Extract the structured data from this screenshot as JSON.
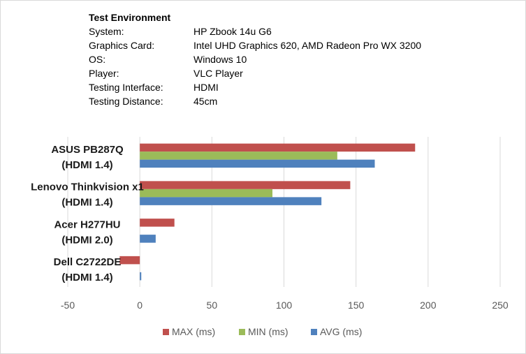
{
  "environment": {
    "title": "Test Environment",
    "rows": [
      {
        "label": "System:",
        "value": "HP Zbook 14u G6"
      },
      {
        "label": "Graphics Card:",
        "value": "Intel UHD Graphics 620, AMD Radeon Pro WX 3200"
      },
      {
        "label": "OS:",
        "value": "Windows 10"
      },
      {
        "label": "Player:",
        "value": "VLC Player"
      },
      {
        "label": "Testing Interface:",
        "value": "HDMI"
      },
      {
        "label": "Testing Distance:",
        "value": "45cm"
      }
    ]
  },
  "chart_data": {
    "type": "bar",
    "orientation": "horizontal",
    "categories": [
      [
        "ASUS PB287Q",
        "(HDMI 1.4)"
      ],
      [
        "Lenovo Thinkvision x1",
        "(HDMI 1.4)"
      ],
      [
        "Acer H277HU",
        "(HDMI 2.0)"
      ],
      [
        "Dell C2722DE",
        "(HDMI 1.4)"
      ]
    ],
    "series": [
      {
        "name": "MAX (ms)",
        "color": "#c0504d",
        "values": [
          191,
          146,
          24,
          -14
        ]
      },
      {
        "name": "MIN (ms)",
        "color": "#9bbb59",
        "values": [
          137,
          92,
          null,
          null
        ]
      },
      {
        "name": "AVG (ms)",
        "color": "#4f81bd",
        "values": [
          163,
          126,
          11,
          1
        ]
      }
    ],
    "xlim": [
      -50,
      250
    ],
    "xticks": [
      -50,
      0,
      50,
      100,
      150,
      200,
      250
    ],
    "grid": true,
    "legend": "bottom"
  }
}
